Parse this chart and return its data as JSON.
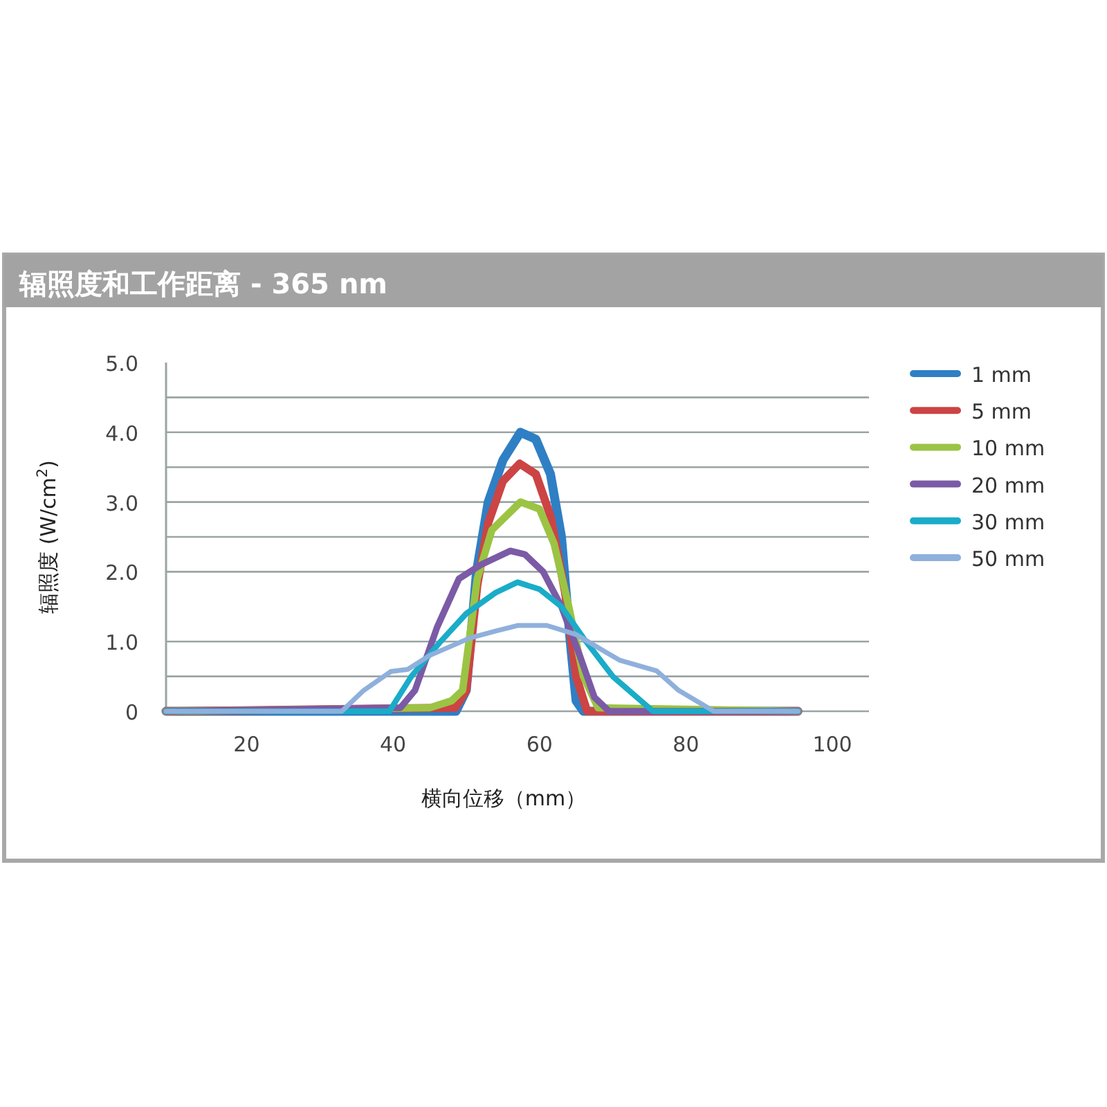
{
  "chart_data": {
    "type": "line",
    "title": "辐照度和工作距离 - 365 nm",
    "xlabel": "横向位移（mm）",
    "ylabel": "辐照度 (W/cm$^{2}$)",
    "xlim": [
      9,
      105
    ],
    "xticks": [
      20,
      40,
      60,
      80,
      100
    ],
    "ylim": [
      0,
      5
    ],
    "yticks": [
      0,
      {
        "value": 0.5,
        "label": null
      },
      {
        "value": 1,
        "label": "1.0"
      },
      {
        "value": 2,
        "label": "2.0"
      },
      {
        "value": 2.5,
        "label": null
      },
      {
        "value": 3,
        "label": "3.0"
      },
      {
        "value": 3.5,
        "label": null
      },
      {
        "value": 4,
        "label": "4.0"
      },
      {
        "value": 4.5,
        "label": null
      },
      {
        "value": 5,
        "label": "5.0"
      }
    ],
    "grid": "y",
    "legend": "top right",
    "marker": "none",
    "line_style": "solid",
    "series": [
      {
        "name": "1 mm",
        "color": "#2f7fc4",
        "x": [
          9,
          48.6,
          50,
          51.4,
          53,
          55,
          57.4,
          59.5,
          61.5,
          63,
          64.2,
          65,
          66,
          95.3
        ],
        "values": [
          0,
          0,
          0.3,
          2.0,
          3.0,
          3.6,
          4.0,
          3.9,
          3.4,
          2.5,
          1.0,
          0.15,
          0,
          0
        ]
      },
      {
        "name": "5 mm",
        "color": "#cc4444",
        "x": [
          9,
          48.5,
          50,
          51.5,
          53,
          55,
          57.3,
          59.5,
          61.5,
          63.5,
          65,
          66.5,
          95.3
        ],
        "values": [
          0,
          0.05,
          0.3,
          1.8,
          2.7,
          3.3,
          3.55,
          3.4,
          2.8,
          1.7,
          0.5,
          0,
          0
        ]
      },
      {
        "name": "10 mm",
        "color": "#9bc444",
        "x": [
          9,
          45,
          48,
          49.5,
          51.5,
          53.5,
          57.4,
          60,
          62,
          64,
          66,
          68,
          95.3
        ],
        "values": [
          0,
          0.05,
          0.15,
          0.3,
          1.9,
          2.6,
          3.0,
          2.9,
          2.4,
          1.5,
          0.5,
          0.05,
          0
        ]
      },
      {
        "name": "20 mm",
        "color": "#7b5aa6",
        "x": [
          9,
          41,
          43,
          46,
          49,
          52,
          56,
          58,
          60.5,
          63,
          65.5,
          67.5,
          69.5,
          95.3
        ],
        "values": [
          0,
          0.05,
          0.3,
          1.2,
          1.9,
          2.1,
          2.3,
          2.25,
          2.0,
          1.5,
          0.8,
          0.2,
          0,
          0
        ]
      },
      {
        "name": "30 mm",
        "color": "#1aacc8",
        "x": [
          9,
          39.5,
          42.5,
          46.5,
          50,
          54,
          57,
          60,
          63,
          66,
          70,
          75.5,
          95.3
        ],
        "values": [
          0,
          0,
          0.5,
          1.0,
          1.4,
          1.7,
          1.85,
          1.75,
          1.5,
          1.05,
          0.5,
          0,
          0
        ]
      },
      {
        "name": "50 mm",
        "color": "#8fb0dc",
        "x": [
          9,
          33,
          36,
          39.7,
          42,
          45,
          50.5,
          54,
          57,
          61,
          65,
          69,
          71,
          76,
          79,
          83.8,
          95.3
        ],
        "values": [
          0,
          0,
          0.3,
          0.57,
          0.6,
          0.8,
          1.05,
          1.15,
          1.23,
          1.23,
          1.1,
          0.85,
          0.73,
          0.58,
          0.3,
          0,
          0
        ]
      }
    ]
  }
}
